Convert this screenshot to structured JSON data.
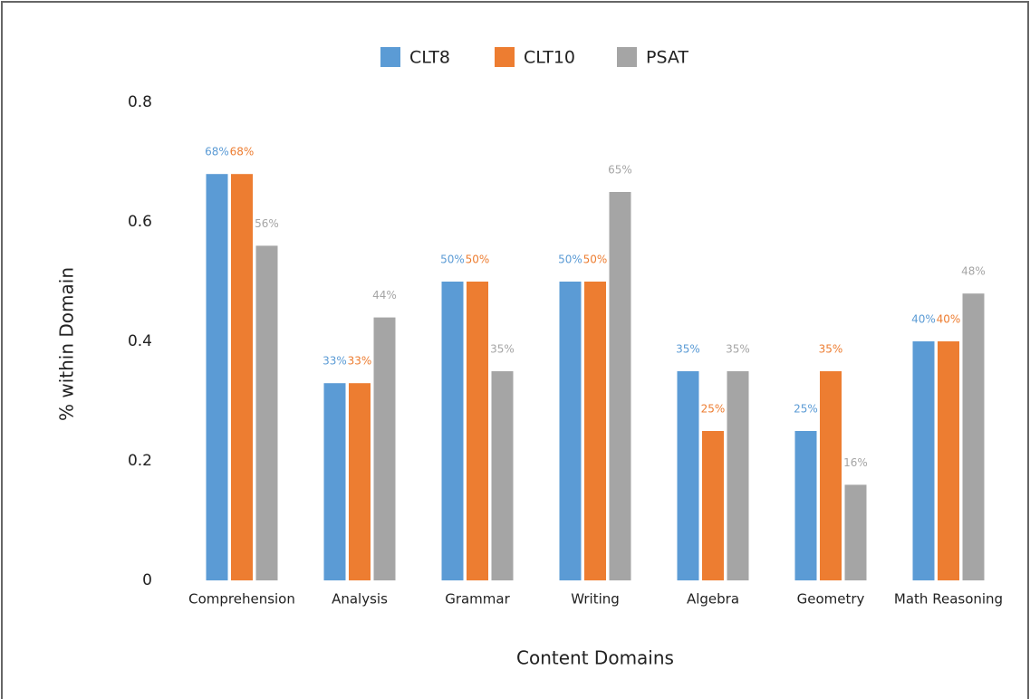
{
  "chart_data": {
    "type": "bar",
    "x_label": "Content Domains",
    "y_label": "% within Domain",
    "categories": [
      "Comprehension",
      "Analysis",
      "Grammar",
      "Writing",
      "Algebra",
      "Geometry",
      "Math Reasoning"
    ],
    "series": [
      {
        "name": "CLT8",
        "color": "#5b9bd5",
        "values": [
          0.68,
          0.33,
          0.5,
          0.5,
          0.35,
          0.25,
          0.4
        ],
        "value_labels": [
          "68%",
          "33%",
          "50%",
          "50%",
          "35%",
          "25%",
          "40%"
        ]
      },
      {
        "name": "CLT10",
        "color": "#ed7d31",
        "values": [
          0.68,
          0.33,
          0.5,
          0.5,
          0.25,
          0.35,
          0.4
        ],
        "value_labels": [
          "68%",
          "33%",
          "50%",
          "50%",
          "25%",
          "35%",
          "40%"
        ]
      },
      {
        "name": "PSAT",
        "color": "#a5a5a5",
        "values": [
          0.56,
          0.44,
          0.35,
          0.65,
          0.35,
          0.16,
          0.48
        ],
        "value_labels": [
          "56%",
          "44%",
          "35%",
          "65%",
          "35%",
          "16%",
          "48%"
        ]
      }
    ],
    "ylim": [
      0,
      0.8
    ],
    "yticks": [
      0,
      0.2,
      0.4,
      0.6,
      0.8
    ],
    "grid": false,
    "legend": "top"
  }
}
